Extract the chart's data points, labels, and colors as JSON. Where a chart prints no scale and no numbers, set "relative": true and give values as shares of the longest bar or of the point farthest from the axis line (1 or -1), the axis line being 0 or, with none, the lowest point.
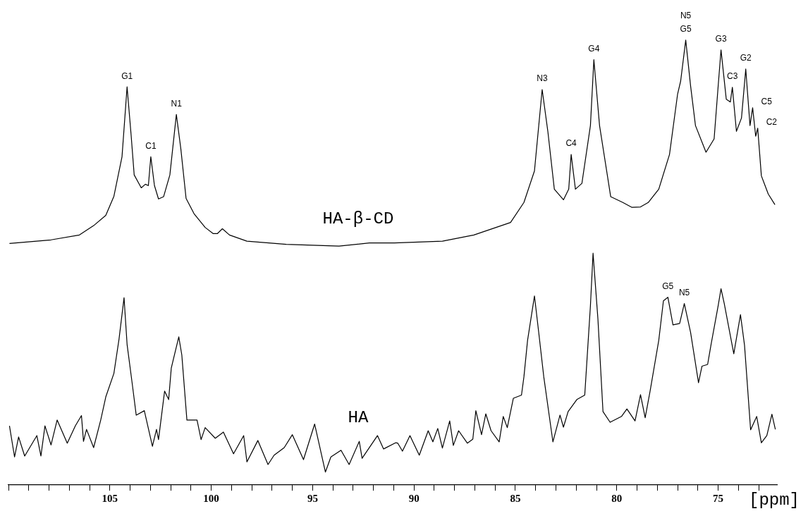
{
  "chart_data": {
    "type": "line",
    "relative": true,
    "xlabel": "[ppm]",
    "xlim": [
      110,
      72.1
    ],
    "xticks": [
      {
        "value": 110,
        "label": null
      },
      {
        "value": 109,
        "label": null
      },
      {
        "value": 108,
        "label": null
      },
      {
        "value": 107,
        "label": null
      },
      {
        "value": 106,
        "label": null
      },
      105,
      {
        "value": 104,
        "label": null
      },
      {
        "value": 103,
        "label": null
      },
      {
        "value": 102,
        "label": null
      },
      {
        "value": 101,
        "label": null
      },
      100,
      {
        "value": 99,
        "label": null
      },
      {
        "value": 98,
        "label": null
      },
      {
        "value": 97,
        "label": null
      },
      {
        "value": 96,
        "label": null
      },
      95,
      {
        "value": 94,
        "label": null
      },
      {
        "value": 93,
        "label": null
      },
      {
        "value": 92,
        "label": null
      },
      {
        "value": 91,
        "label": null
      },
      90,
      {
        "value": 89,
        "label": null
      },
      {
        "value": 88,
        "label": null
      },
      {
        "value": 87,
        "label": null
      },
      {
        "value": 86,
        "label": null
      },
      85,
      {
        "value": 84,
        "label": null
      },
      {
        "value": 83,
        "label": null
      },
      {
        "value": 82,
        "label": null
      },
      {
        "value": 81,
        "label": null
      },
      80,
      {
        "value": 79,
        "label": null
      },
      {
        "value": 78,
        "label": null
      },
      {
        "value": 77,
        "label": null
      },
      {
        "value": 76,
        "label": null
      },
      75,
      {
        "value": 74,
        "label": null
      },
      {
        "value": 73,
        "label": null
      }
    ],
    "series": [
      {
        "name": "HA-β-CD",
        "color": "#000000",
        "x": [
          109.95,
          107.9,
          106.5,
          105.8,
          105.2,
          104.8,
          104.4,
          104.15,
          103.95,
          103.8,
          103.45,
          103.25,
          103.1,
          102.98,
          102.8,
          102.6,
          102.35,
          102.04,
          101.72,
          101.5,
          101.24,
          100.85,
          100.3,
          99.9,
          99.7,
          99.45,
          99.1,
          98.24,
          96.3,
          93.7,
          92.2,
          90.96,
          88.6,
          87.05,
          85.24,
          84.58,
          84.06,
          83.68,
          83.4,
          83.08,
          82.63,
          82.37,
          82.25,
          82.04,
          81.72,
          81.3,
          81.13,
          80.85,
          80.3,
          79.7,
          79.25,
          78.83,
          78.45,
          77.93,
          77.4,
          77.0,
          76.85,
          76.6,
          76.36,
          76.12,
          75.6,
          75.2,
          75.0,
          74.86,
          74.6,
          74.4,
          74.3,
          74.1,
          73.85,
          73.64,
          73.43,
          73.3,
          73.15,
          73.05,
          72.87,
          72.53,
          72.2
        ],
        "values": [
          0.543,
          0.551,
          0.562,
          0.583,
          0.606,
          0.649,
          0.738,
          0.895,
          0.786,
          0.697,
          0.668,
          0.676,
          0.673,
          0.738,
          0.673,
          0.643,
          0.648,
          0.697,
          0.833,
          0.756,
          0.644,
          0.61,
          0.579,
          0.565,
          0.565,
          0.576,
          0.562,
          0.548,
          0.541,
          0.537,
          0.544,
          0.544,
          0.548,
          0.562,
          0.59,
          0.635,
          0.706,
          0.889,
          0.795,
          0.665,
          0.641,
          0.665,
          0.743,
          0.665,
          0.678,
          0.808,
          0.956,
          0.808,
          0.648,
          0.635,
          0.624,
          0.625,
          0.635,
          0.665,
          0.743,
          0.879,
          0.908,
          1.0,
          0.897,
          0.808,
          0.748,
          0.778,
          0.897,
          0.978,
          0.867,
          0.861,
          0.894,
          0.795,
          0.825,
          0.935,
          0.808,
          0.848,
          0.784,
          0.802,
          0.695,
          0.654,
          0.63
        ]
      },
      {
        "name": "HA",
        "color": "#000000",
        "x": [
          109.95,
          109.7,
          109.5,
          109.2,
          108.6,
          108.4,
          108.2,
          107.9,
          107.6,
          107.1,
          106.7,
          106.4,
          106.3,
          106.15,
          105.8,
          105.45,
          105.2,
          104.8,
          104.55,
          104.3,
          104.15,
          103.9,
          103.7,
          103.3,
          102.9,
          102.7,
          102.6,
          102.3,
          102.1,
          101.97,
          101.6,
          101.45,
          101.2,
          100.7,
          100.5,
          100.3,
          99.8,
          99.4,
          98.9,
          98.4,
          98.24,
          97.7,
          97.2,
          96.9,
          96.4,
          96.0,
          95.45,
          94.9,
          94.37,
          94.1,
          93.6,
          93.2,
          92.7,
          92.56,
          91.8,
          91.5,
          90.9,
          90.8,
          90.57,
          90.2,
          89.74,
          89.3,
          89.07,
          88.83,
          88.6,
          88.24,
          88.06,
          87.8,
          87.37,
          87.1,
          86.95,
          86.67,
          86.46,
          86.2,
          85.8,
          85.6,
          85.4,
          85.1,
          84.7,
          84.58,
          84.4,
          84.06,
          83.85,
          83.6,
          83.15,
          82.8,
          82.63,
          82.4,
          81.97,
          81.58,
          81.3,
          81.17,
          80.93,
          80.68,
          80.33,
          79.77,
          79.5,
          79.1,
          78.83,
          78.6,
          78.35,
          77.93,
          77.7,
          77.48,
          77.23,
          76.9,
          76.67,
          76.36,
          75.97,
          75.8,
          75.52,
          75.35,
          75.0,
          74.86,
          74.7,
          74.23,
          73.9,
          73.7,
          73.4,
          73.1,
          72.87,
          72.6,
          72.35,
          72.18
        ],
        "values": [
          0.133,
          0.063,
          0.108,
          0.065,
          0.111,
          0.065,
          0.133,
          0.09,
          0.146,
          0.094,
          0.133,
          0.156,
          0.098,
          0.125,
          0.084,
          0.146,
          0.198,
          0.251,
          0.327,
          0.421,
          0.316,
          0.229,
          0.157,
          0.167,
          0.087,
          0.125,
          0.102,
          0.211,
          0.192,
          0.263,
          0.333,
          0.292,
          0.146,
          0.146,
          0.102,
          0.129,
          0.105,
          0.119,
          0.07,
          0.111,
          0.052,
          0.1,
          0.046,
          0.067,
          0.084,
          0.113,
          0.057,
          0.137,
          0.029,
          0.063,
          0.078,
          0.046,
          0.098,
          0.06,
          0.111,
          0.081,
          0.095,
          0.094,
          0.076,
          0.111,
          0.067,
          0.122,
          0.097,
          0.127,
          0.083,
          0.144,
          0.089,
          0.122,
          0.094,
          0.103,
          0.167,
          0.113,
          0.16,
          0.122,
          0.097,
          0.154,
          0.129,
          0.195,
          0.202,
          0.243,
          0.325,
          0.425,
          0.343,
          0.243,
          0.097,
          0.157,
          0.13,
          0.165,
          0.192,
          0.202,
          0.403,
          0.521,
          0.373,
          0.165,
          0.141,
          0.154,
          0.171,
          0.144,
          0.203,
          0.151,
          0.213,
          0.325,
          0.414,
          0.422,
          0.36,
          0.363,
          0.408,
          0.343,
          0.23,
          0.267,
          0.271,
          0.316,
          0.403,
          0.441,
          0.408,
          0.295,
          0.383,
          0.314,
          0.124,
          0.154,
          0.095,
          0.111,
          0.159,
          0.125
        ]
      }
    ],
    "annotations": [
      {
        "text": "G1",
        "x": 104.15,
        "y": 0.895
      },
      {
        "text": "C1",
        "x": 102.98,
        "y": 0.738
      },
      {
        "text": "N1",
        "x": 101.72,
        "y": 0.833
      },
      {
        "text": "N3",
        "x": 83.68,
        "y": 0.889
      },
      {
        "text": "C4",
        "x": 82.25,
        "y": 0.743
      },
      {
        "text": "G4",
        "x": 81.13,
        "y": 0.956
      },
      {
        "text": "G5",
        "x": 76.6,
        "y": 1.0
      },
      {
        "text": "N5",
        "x": 76.6,
        "y": 1.0
      },
      {
        "text": "G3",
        "x": 74.86,
        "y": 0.978
      },
      {
        "text": "C3",
        "x": 74.3,
        "y": 0.894
      },
      {
        "text": "G2",
        "x": 73.64,
        "y": 0.935
      },
      {
        "text": "C5",
        "x": 73.3,
        "y": 0.848
      },
      {
        "text": "C2",
        "x": 73.05,
        "y": 0.802
      },
      {
        "text": "G5",
        "x": 77.48,
        "y": 0.422
      },
      {
        "text": "N5",
        "x": 76.67,
        "y": 0.408
      }
    ]
  }
}
